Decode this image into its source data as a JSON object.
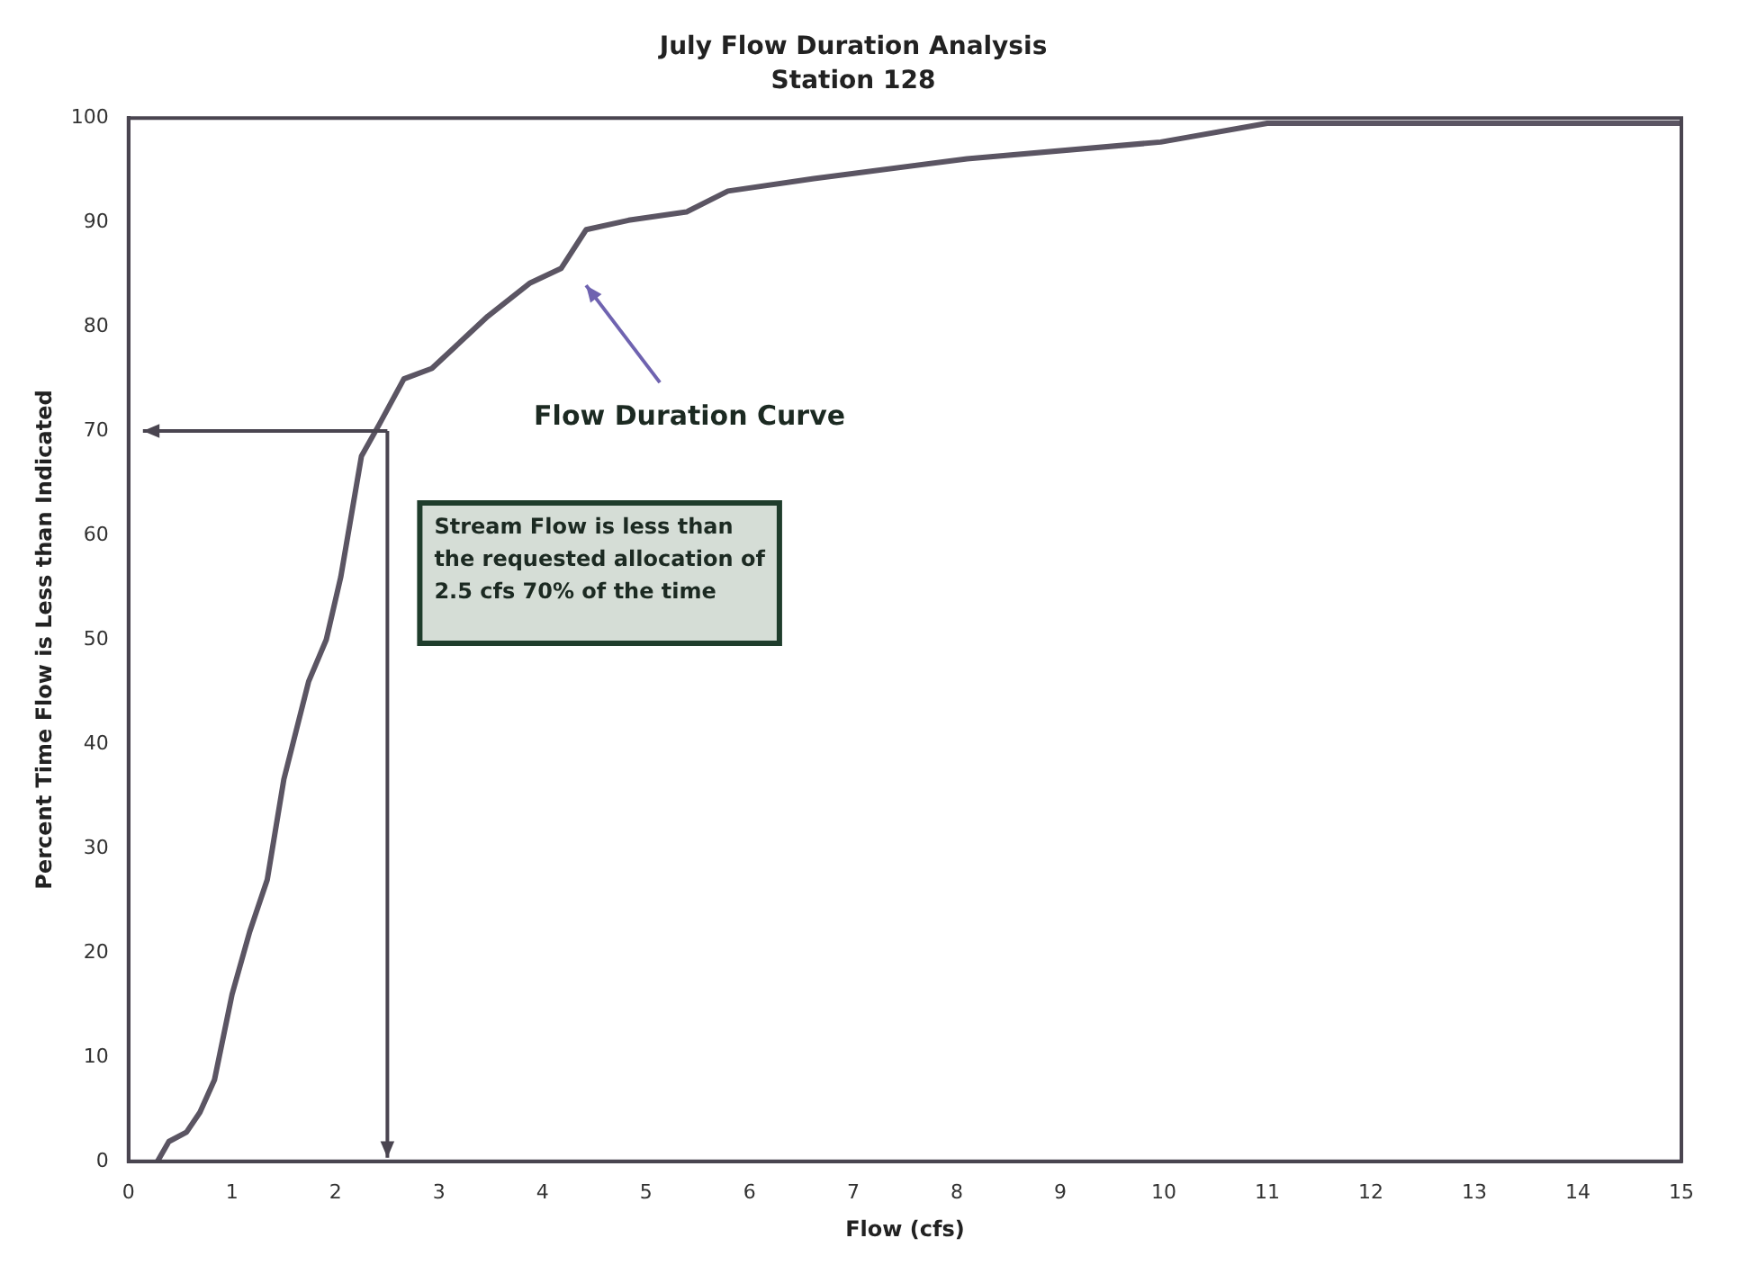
{
  "chart_data": {
    "type": "line",
    "title": "July Flow Duration Analysis",
    "subtitle": "Station 128",
    "xlabel": "Flow (cfs)",
    "ylabel": "Percent Time Flow is Less than Indicated",
    "xlim": [
      0,
      15
    ],
    "xticks": [
      0,
      1,
      2,
      3,
      4,
      5,
      6,
      7,
      8,
      9,
      10,
      11,
      12,
      13,
      14,
      15
    ],
    "ylim": [
      0,
      100
    ],
    "yticks": [
      0,
      10,
      20,
      30,
      40,
      50,
      60,
      70,
      80,
      90,
      100
    ],
    "grid": false,
    "legend": false,
    "marker": "none",
    "line_style": "solid",
    "series": [
      {
        "color": "#5b5563",
        "x": [
          0.28,
          0.39,
          0.56,
          0.69,
          0.83,
          1.0,
          1.17,
          1.34,
          1.5,
          1.74,
          1.91,
          2.05,
          2.25,
          2.42,
          2.66,
          2.93,
          3.47,
          3.88,
          4.18,
          4.42,
          4.83,
          5.39,
          5.79,
          6.62,
          8.1,
          9.97,
          11.0,
          15.0
        ],
        "values": [
          0,
          1.9,
          2.8,
          4.7,
          7.8,
          16,
          22,
          27,
          36.6,
          46,
          50,
          56,
          67.6,
          70.6,
          75,
          76,
          81,
          84.2,
          85.6,
          89.3,
          90.2,
          91,
          93,
          94.2,
          96.1,
          97.7,
          99.5,
          99.5
        ]
      }
    ],
    "annotations": [
      "Stream Flow is less than the requested allocation of 2.5 cfs 70% of the time",
      "Flow Duration Curve"
    ]
  }
}
